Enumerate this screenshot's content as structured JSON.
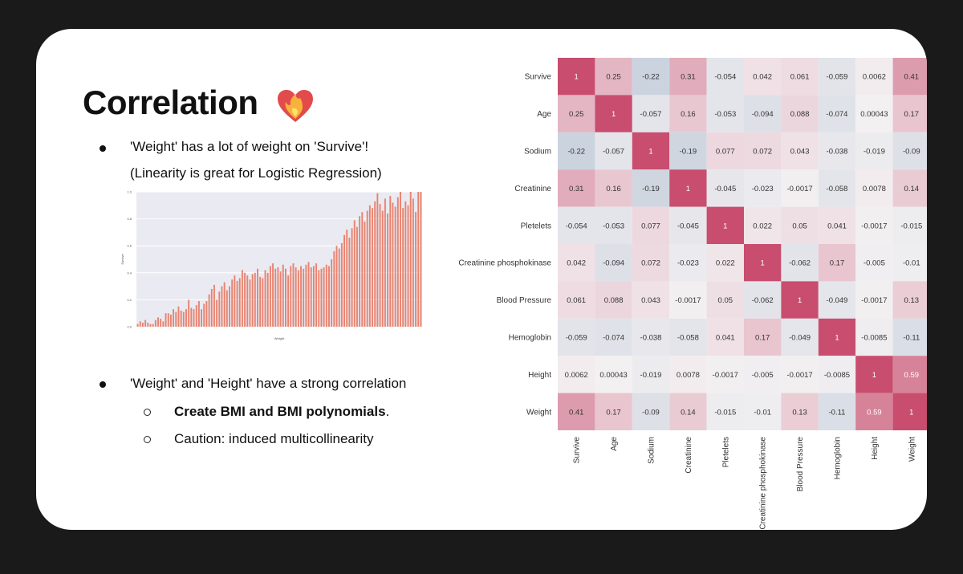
{
  "slide": {
    "title": "Correlation",
    "title_icon": "heart-on-fire-icon",
    "bullets": [
      "'Weight' has a lot of weight on 'Survive'!",
      "(Linearity is great for Logistic Regression)",
      "'Weight' and 'Height' have a strong correlation"
    ],
    "sub_bullets": [
      {
        "bold": "Create BMI and BMI polynomials",
        "rest": "."
      },
      {
        "bold": "",
        "rest": "Caution: induced multicollinearity"
      }
    ]
  },
  "chart_data": [
    {
      "type": "bar",
      "xlabel": "Weight",
      "ylabel": "Survive",
      "ylim": [
        0,
        1.0
      ],
      "yticks": [
        "0.0",
        "0.2",
        "0.4",
        "0.6",
        "0.8",
        "1.0"
      ],
      "color": "#e8836f",
      "grid": true,
      "values": [
        0.02,
        0.04,
        0.03,
        0.05,
        0.03,
        0.02,
        0.02,
        0.05,
        0.07,
        0.06,
        0.04,
        0.1,
        0.1,
        0.09,
        0.13,
        0.11,
        0.15,
        0.12,
        0.11,
        0.13,
        0.2,
        0.14,
        0.13,
        0.16,
        0.19,
        0.13,
        0.17,
        0.19,
        0.24,
        0.28,
        0.31,
        0.2,
        0.26,
        0.3,
        0.33,
        0.27,
        0.3,
        0.35,
        0.38,
        0.34,
        0.36,
        0.42,
        0.4,
        0.38,
        0.35,
        0.39,
        0.4,
        0.43,
        0.37,
        0.36,
        0.42,
        0.4,
        0.45,
        0.47,
        0.43,
        0.44,
        0.41,
        0.46,
        0.43,
        0.38,
        0.45,
        0.47,
        0.44,
        0.42,
        0.45,
        0.43,
        0.46,
        0.48,
        0.44,
        0.45,
        0.47,
        0.42,
        0.43,
        0.44,
        0.46,
        0.45,
        0.5,
        0.56,
        0.6,
        0.58,
        0.62,
        0.68,
        0.72,
        0.66,
        0.73,
        0.79,
        0.74,
        0.82,
        0.85,
        0.78,
        0.86,
        0.9,
        0.88,
        0.93,
        0.99,
        0.91,
        0.86,
        0.95,
        0.84,
        0.97,
        0.92,
        0.89,
        0.96,
        1.0,
        0.88,
        0.93,
        0.9,
        1.0,
        0.95,
        0.85,
        1.0,
        1.0
      ]
    },
    {
      "type": "heatmap",
      "labels": [
        "Survive",
        "Age",
        "Sodium",
        "Creatinine",
        "Pletelets",
        "Creatinine phosphokinase",
        "Blood Pressure",
        "Hemoglobin",
        "Height",
        "Weight"
      ],
      "values": [
        [
          "1",
          "0.25",
          "-0.22",
          "0.31",
          "-0.054",
          "0.042",
          "0.061",
          "-0.059",
          "0.0062",
          "0.41"
        ],
        [
          "0.25",
          "1",
          "-0.057",
          "0.16",
          "-0.053",
          "-0.094",
          "0.088",
          "-0.074",
          "0.00043",
          "0.17"
        ],
        [
          "-0.22",
          "-0.057",
          "1",
          "-0.19",
          "0.077",
          "0.072",
          "0.043",
          "-0.038",
          "-0.019",
          "-0.09"
        ],
        [
          "0.31",
          "0.16",
          "-0.19",
          "1",
          "-0.045",
          "-0.023",
          "-0.0017",
          "-0.058",
          "0.0078",
          "0.14"
        ],
        [
          "-0.054",
          "-0.053",
          "0.077",
          "-0.045",
          "1",
          "0.022",
          "0.05",
          "0.041",
          "-0.0017",
          "-0.015"
        ],
        [
          "0.042",
          "-0.094",
          "0.072",
          "-0.023",
          "0.022",
          "1",
          "-0.062",
          "0.17",
          "-0.005",
          "-0.01"
        ],
        [
          "0.061",
          "0.088",
          "0.043",
          "-0.0017",
          "0.05",
          "-0.062",
          "1",
          "-0.049",
          "-0.0017",
          "0.13"
        ],
        [
          "-0.059",
          "-0.074",
          "-0.038",
          "-0.058",
          "0.041",
          "0.17",
          "-0.049",
          "1",
          "-0.0085",
          "-0.11"
        ],
        [
          "0.0062",
          "0.00043",
          "-0.019",
          "0.0078",
          "-0.0017",
          "-0.005",
          "-0.0017",
          "-0.0085",
          "1",
          "0.59"
        ],
        [
          "0.41",
          "0.17",
          "-0.09",
          "0.14",
          "-0.015",
          "-0.01",
          "0.13",
          "-0.11",
          "0.59",
          "1"
        ]
      ],
      "colors": {
        "positive": "#c84d6e",
        "negative": "#8fa7c0",
        "neutral": "#f3f0f2"
      }
    }
  ]
}
